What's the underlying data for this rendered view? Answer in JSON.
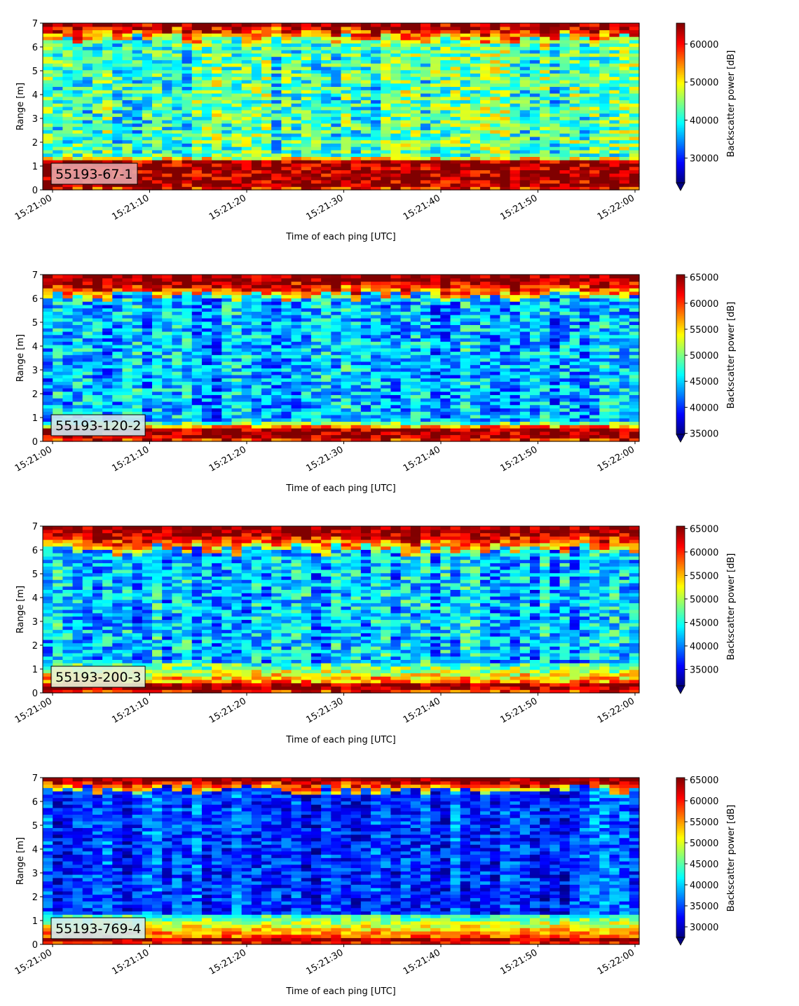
{
  "chart_data": [
    {
      "type": "heatmap",
      "label": "55193-67-1",
      "label_bg": "#e5a3a6",
      "xlabel": "Time of each ping [UTC]",
      "ylabel": "Range [m]",
      "ylim": [
        0,
        7
      ],
      "yticks": [
        "0",
        "1",
        "2",
        "3",
        "4",
        "5",
        "6",
        "7"
      ],
      "xticks": [
        "15:21:00",
        "15:21:10",
        "15:21:20",
        "15:21:30",
        "15:21:40",
        "15:21:50",
        "15:22:00"
      ],
      "colorbar_label": "Backscatter power [dB]",
      "colorbar_range": [
        23500,
        65500
      ],
      "colorbar_ticks": [
        "30000",
        "40000",
        "50000",
        "60000"
      ],
      "colormap": "jet",
      "profile": {
        "surface_top": 6.9,
        "surface_start": 6.3,
        "near_band": [
          0.2,
          1.2
        ],
        "near_edge": [
          1.2,
          1.5
        ],
        "mid_level": 0.45,
        "noise": 0.18
      }
    },
    {
      "type": "heatmap",
      "label": "55193-120-2",
      "label_bg": "#cfe6ee",
      "xlabel": "Time of each ping [UTC]",
      "ylabel": "Range [m]",
      "ylim": [
        0,
        7
      ],
      "yticks": [
        "0",
        "1",
        "2",
        "3",
        "4",
        "5",
        "6",
        "7"
      ],
      "xticks": [
        "15:21:00",
        "15:21:10",
        "15:21:20",
        "15:21:30",
        "15:21:40",
        "15:21:50",
        "15:22:00"
      ],
      "colorbar_label": "Backscatter power [dB]",
      "colorbar_range": [
        34800,
        65500
      ],
      "colorbar_ticks": [
        "35000",
        "40000",
        "45000",
        "50000",
        "55000",
        "60000",
        "65000"
      ],
      "colormap": "jet",
      "profile": {
        "surface_top": 6.7,
        "surface_start": 6.1,
        "near_band": [
          0.1,
          0.6
        ],
        "near_edge": [
          0.6,
          0.8
        ],
        "mid_level": 0.3,
        "noise": 0.16
      }
    },
    {
      "type": "heatmap",
      "label": "55193-200-3",
      "label_bg": "#e6f2d8",
      "xlabel": "Time of each ping [UTC]",
      "ylabel": "Range [m]",
      "ylim": [
        0,
        7
      ],
      "yticks": [
        "0",
        "1",
        "2",
        "3",
        "4",
        "5",
        "6",
        "7"
      ],
      "xticks": [
        "15:21:00",
        "15:21:10",
        "15:21:20",
        "15:21:30",
        "15:21:40",
        "15:21:50",
        "15:22:00"
      ],
      "colorbar_label": "Backscatter power [dB]",
      "colorbar_range": [
        31500,
        65500
      ],
      "colorbar_ticks": [
        "35000",
        "40000",
        "45000",
        "50000",
        "55000",
        "60000",
        "65000"
      ],
      "colormap": "jet",
      "profile": {
        "surface_top": 6.7,
        "surface_start": 6.0,
        "near_band": [
          0.1,
          0.4
        ],
        "near_edge": [
          0.4,
          1.3
        ],
        "mid_level": 0.32,
        "noise": 0.16
      }
    },
    {
      "type": "heatmap",
      "label": "55193-769-4",
      "label_bg": "#d3ecf1",
      "xlabel": "Time of each ping [UTC]",
      "ylabel": "Range [m]",
      "ylim": [
        0,
        7
      ],
      "yticks": [
        "0",
        "1",
        "2",
        "3",
        "4",
        "5",
        "6",
        "7"
      ],
      "xticks": [
        "15:21:00",
        "15:21:10",
        "15:21:20",
        "15:21:30",
        "15:21:40",
        "15:21:50",
        "15:22:00"
      ],
      "colorbar_label": "Backscatter power [dB]",
      "colorbar_range": [
        27500,
        65500
      ],
      "colorbar_ticks": [
        "30000",
        "35000",
        "40000",
        "45000",
        "50000",
        "55000",
        "60000",
        "65000"
      ],
      "colormap": "jet",
      "profile": {
        "surface_top": 6.85,
        "surface_start": 6.5,
        "near_band": [
          0.15,
          0.35
        ],
        "near_edge": [
          0.35,
          1.3
        ],
        "mid_level": 0.18,
        "noise": 0.12
      }
    }
  ]
}
